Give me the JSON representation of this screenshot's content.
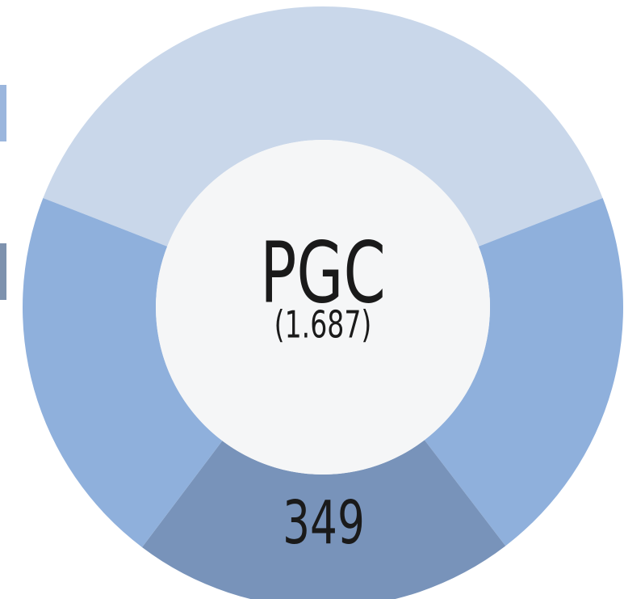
{
  "chart_data": {
    "type": "donut",
    "center_label": "PGC",
    "total_label": "(1.687)",
    "values": [
      644,
      346,
      349,
      348
    ],
    "value_labels": [
      null,
      null,
      "349",
      null
    ],
    "colors": [
      "#c9d7ea",
      "#8fb0dc",
      "#7893ba",
      "#8fb0dc"
    ],
    "legend_colors": [
      "#9bb6dd",
      "#7e92ae"
    ]
  }
}
